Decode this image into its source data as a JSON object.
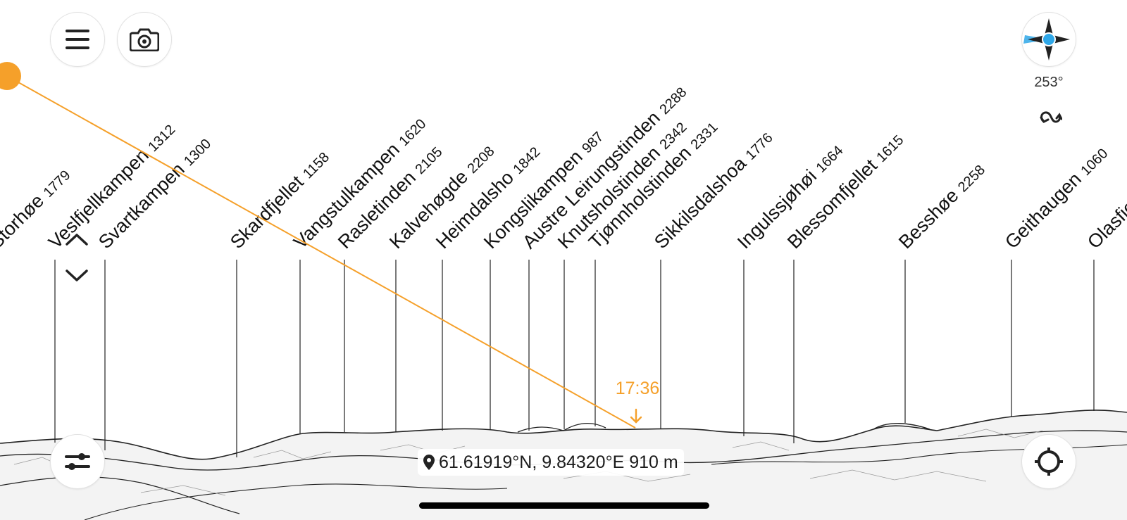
{
  "peaks": [
    {
      "name": "Storhøe",
      "elevation": "1779"
    },
    {
      "name": "Veslfjellkampen",
      "elevation": "1312"
    },
    {
      "name": "Svartkampen",
      "elevation": "1300"
    },
    {
      "name": "Skardfjellet",
      "elevation": "1158"
    },
    {
      "name": "Vangstulkampen",
      "elevation": "1620"
    },
    {
      "name": "Rasletinden",
      "elevation": "2105"
    },
    {
      "name": "Kalvehøgde",
      "elevation": "2208"
    },
    {
      "name": "Heimdalsho",
      "elevation": "1842"
    },
    {
      "name": "Kongslikampen",
      "elevation": "987"
    },
    {
      "name": "Austre Leirungstinden",
      "elevation": "2288"
    },
    {
      "name": "Knutsholstinden",
      "elevation": "2342"
    },
    {
      "name": "Tjønnholstinden",
      "elevation": "2331"
    },
    {
      "name": "Sikkilsdalshoa",
      "elevation": "1776"
    },
    {
      "name": "Ingulssjøhøi",
      "elevation": "1664"
    },
    {
      "name": "Blessomfjellet",
      "elevation": "1615"
    },
    {
      "name": "Besshøe",
      "elevation": "2258"
    },
    {
      "name": "Geithaugen",
      "elevation": "1060"
    },
    {
      "name": "Olasfjellet",
      "elevation": ""
    }
  ],
  "sun": {
    "time_label": "17:36",
    "color": "#F5A02A"
  },
  "compass": {
    "heading": "253°",
    "accent": "#2EA7E8"
  },
  "location": {
    "text": "61.61919°N, 9.84320°E 910 m"
  },
  "icons": {
    "menu": "hamburger-menu-icon",
    "camera": "camera-icon",
    "compass": "compass-icon",
    "sync": "sync-icon",
    "filter": "sliders-icon",
    "locate": "crosshair-icon",
    "pin": "location-pin-icon"
  }
}
